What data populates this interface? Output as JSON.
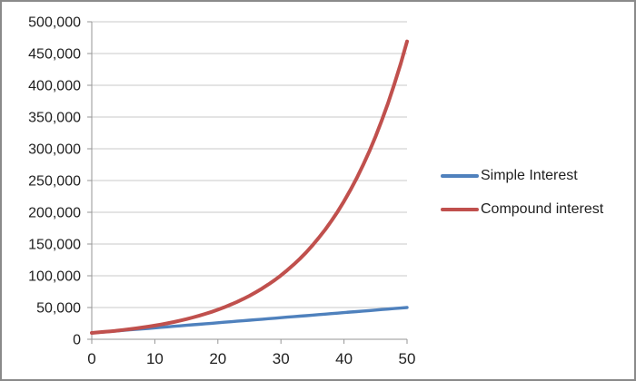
{
  "chart_style": {
    "background_color": "#FFFFFF",
    "frame_border_color": "#8A8A8A",
    "gridline_color": "#C9C9C9",
    "axis_color": "#969696",
    "tick_label_color": "#1F1F1F"
  },
  "chart_data": {
    "type": "line",
    "title": "",
    "xlabel": "",
    "ylabel": "",
    "xlim": [
      0,
      50
    ],
    "ylim": [
      0,
      500000
    ],
    "grid": true,
    "legend_position": "right",
    "x_ticks": [
      0,
      10,
      20,
      30,
      40,
      50
    ],
    "x_tick_labels": [
      "0",
      "10",
      "20",
      "30",
      "40",
      "50"
    ],
    "y_ticks": [
      0,
      50000,
      100000,
      150000,
      200000,
      250000,
      300000,
      350000,
      400000,
      450000,
      500000
    ],
    "y_tick_labels": [
      "0",
      "50,000",
      "100,000",
      "150,000",
      "200,000",
      "250,000",
      "300,000",
      "350,000",
      "400,000",
      "450,000",
      "500,000"
    ],
    "x": [
      0,
      1,
      2,
      3,
      4,
      5,
      6,
      7,
      8,
      9,
      10,
      11,
      12,
      13,
      14,
      15,
      16,
      17,
      18,
      19,
      20,
      21,
      22,
      23,
      24,
      25,
      26,
      27,
      28,
      29,
      30,
      31,
      32,
      33,
      34,
      35,
      36,
      37,
      38,
      39,
      40,
      41,
      42,
      43,
      44,
      45,
      46,
      47,
      48,
      49,
      50
    ],
    "series": [
      {
        "name": "Simple Interest",
        "color": "#4F81BD",
        "line_width": 3.4,
        "values": [
          10000,
          10800,
          11600,
          12400,
          13200,
          14000,
          14800,
          15600,
          16400,
          17200,
          18000,
          18800,
          19600,
          20400,
          21200,
          22000,
          22800,
          23600,
          24400,
          25200,
          26000,
          26800,
          27600,
          28400,
          29200,
          30000,
          30800,
          31600,
          32400,
          33200,
          34000,
          34800,
          35600,
          36400,
          37200,
          38000,
          38800,
          39600,
          40400,
          41200,
          42000,
          42800,
          43600,
          44400,
          45200,
          46000,
          46800,
          47600,
          48400,
          49200,
          50000
        ]
      },
      {
        "name": "Compound interest",
        "color": "#C0504D",
        "line_width": 4,
        "values": [
          10000,
          10800,
          11664,
          12597,
          13605,
          14693,
          15869,
          17138,
          18509,
          19990,
          21589,
          23316,
          25182,
          27196,
          29372,
          31722,
          34259,
          37000,
          39960,
          43157,
          46610,
          50338,
          54365,
          58715,
          63412,
          68485,
          73964,
          79881,
          86271,
          93173,
          100627,
          108677,
          117371,
          126760,
          136901,
          147853,
          159682,
          172456,
          186253,
          201153,
          217245,
          234625,
          253395,
          273666,
          295560,
          319204,
          344741,
          372320,
          402106,
          434274,
          469016
        ]
      }
    ]
  },
  "legend": {
    "items": [
      {
        "label": "Simple Interest",
        "color": "#4F81BD"
      },
      {
        "label": "Compound interest",
        "color": "#C0504D"
      }
    ]
  }
}
